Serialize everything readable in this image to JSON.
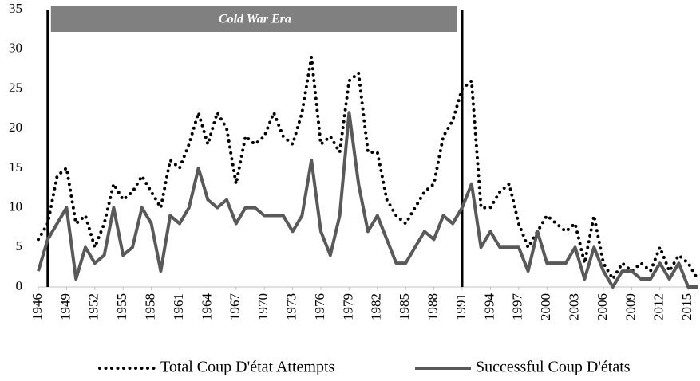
{
  "chart_data": {
    "type": "line",
    "x": [
      1946,
      1947,
      1948,
      1949,
      1950,
      1951,
      1952,
      1953,
      1954,
      1955,
      1956,
      1957,
      1958,
      1959,
      1960,
      1961,
      1962,
      1963,
      1964,
      1965,
      1966,
      1967,
      1968,
      1969,
      1970,
      1971,
      1972,
      1973,
      1974,
      1975,
      1976,
      1977,
      1978,
      1979,
      1980,
      1981,
      1982,
      1983,
      1984,
      1985,
      1986,
      1987,
      1988,
      1989,
      1990,
      1991,
      1992,
      1993,
      1994,
      1995,
      1996,
      1997,
      1998,
      1999,
      2000,
      2001,
      2002,
      2003,
      2004,
      2005,
      2006,
      2007,
      2008,
      2009,
      2010,
      2011,
      2012,
      2013,
      2014,
      2015,
      2016
    ],
    "series": [
      {
        "name": "Total Coup D'état Attempts",
        "color": "#000000",
        "style": "dotted",
        "values": [
          6,
          8,
          14,
          15,
          8,
          9,
          5,
          8,
          13,
          11,
          12,
          14,
          12,
          10,
          16,
          15,
          18,
          22,
          18,
          22,
          20,
          13,
          19,
          18,
          19,
          22,
          19,
          18,
          22,
          29,
          18,
          19,
          17,
          26,
          27,
          17,
          17,
          11,
          9,
          8,
          10,
          12,
          13,
          19,
          21,
          25,
          26,
          10,
          10,
          12,
          13,
          8,
          5,
          7,
          9,
          8,
          7,
          8,
          3,
          9,
          3,
          1,
          3,
          2,
          3,
          2,
          5,
          2,
          4,
          3,
          1
        ]
      },
      {
        "name": "Successful Coup D'états",
        "color": "#595959",
        "style": "solid",
        "values": [
          2,
          6,
          8,
          10,
          1,
          5,
          3,
          4,
          10,
          4,
          5,
          10,
          8,
          2,
          9,
          8,
          10,
          15,
          11,
          10,
          11,
          8,
          10,
          10,
          9,
          9,
          9,
          7,
          9,
          16,
          7,
          4,
          9,
          22,
          13,
          7,
          9,
          6,
          3,
          3,
          5,
          7,
          6,
          9,
          8,
          10,
          13,
          5,
          7,
          5,
          5,
          5,
          2,
          7,
          3,
          3,
          3,
          5,
          1,
          5,
          2,
          0,
          2,
          2,
          1,
          1,
          3,
          1,
          3,
          0,
          0
        ]
      }
    ],
    "xlim": [
      1946,
      2016
    ],
    "xticks": [
      1946,
      1949,
      1952,
      1955,
      1958,
      1961,
      1964,
      1967,
      1970,
      1973,
      1976,
      1979,
      1982,
      1985,
      1988,
      1991,
      1994,
      1997,
      2000,
      2003,
      2006,
      2009,
      2012,
      2015
    ],
    "ylim": [
      0,
      35
    ],
    "yticks": [
      0,
      5,
      10,
      15,
      20,
      25,
      30,
      35
    ],
    "vlines": [
      1947,
      1991
    ],
    "annotation": "Cold War Era",
    "legend": "bottom"
  }
}
